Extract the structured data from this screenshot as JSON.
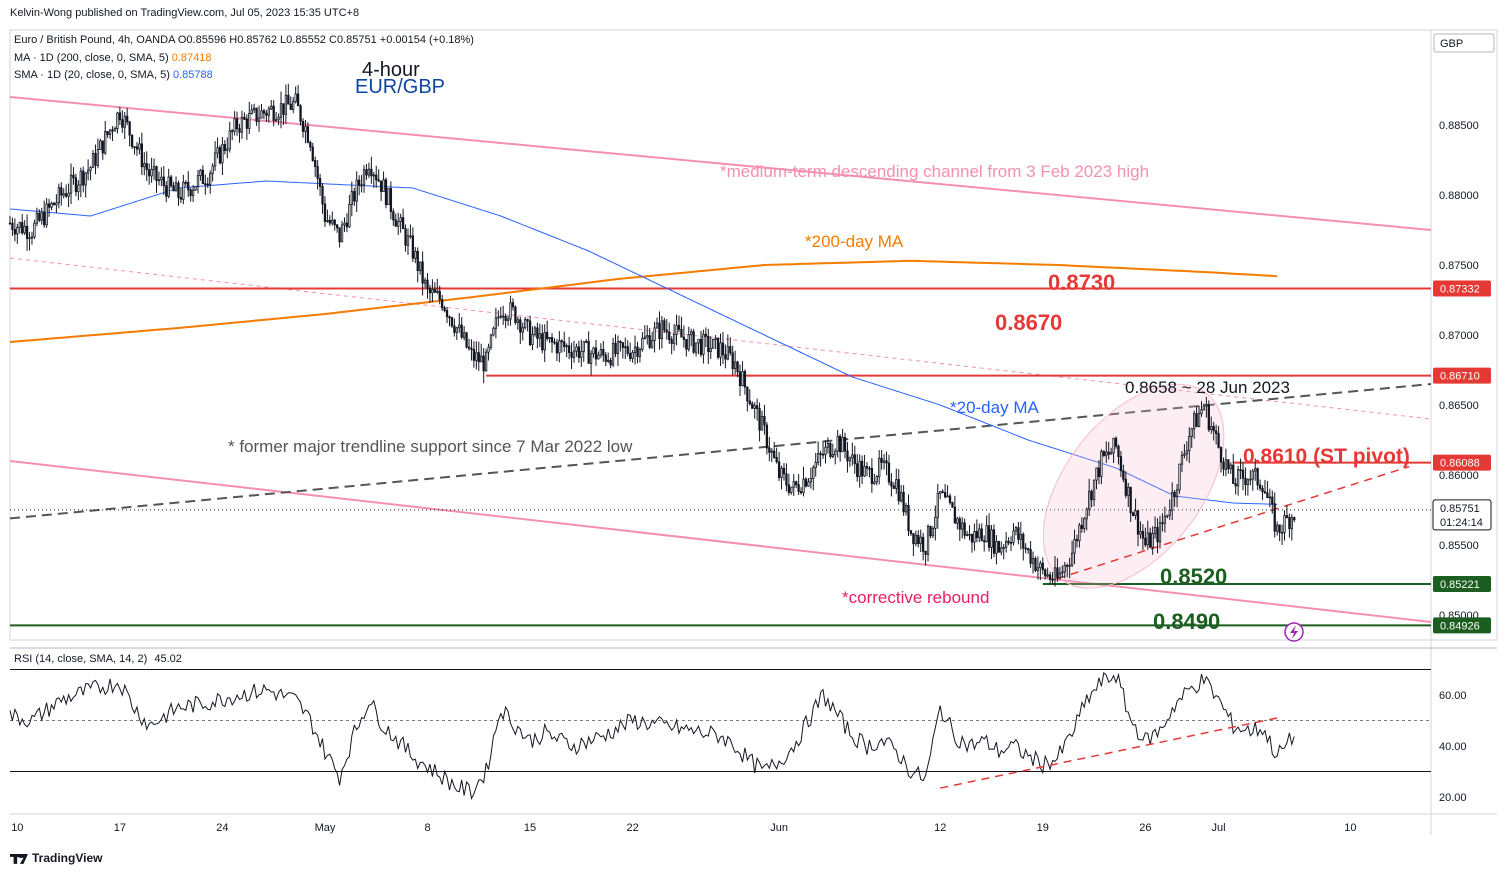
{
  "publisher": "Kelvin-Wong published on TradingView.com, Jul 05, 2023 15:35 UTC+8",
  "brand": "TradingView",
  "legend": {
    "main": "Euro / British Pound, 4h, OANDA",
    "o": "O0.85596",
    "h": "H0.85762",
    "l": "L0.85552",
    "c": "C0.85751",
    "chg": "+0.00154 (+0.18%)",
    "ma": "MA · 1D (200, close, 0, SMA, 5)",
    "ma_val": "0.87418",
    "sma": "SMA · 1D (20, close, 0, SMA, 5)",
    "sma_val": "0.85788",
    "rsi": "RSI (14, close, SMA, 14, 2)",
    "rsi_val": "45.02"
  },
  "colors": {
    "up": "#131722",
    "down": "#131722",
    "ma200": "#f57c00",
    "sma20": "#2962ff",
    "channel": "#f48fb1",
    "resistance": "#e53935",
    "support": "#1b5e20",
    "trend": "#555555",
    "ellipse": "#f8bbd0"
  },
  "chart_data": [
    {
      "type": "candlestick",
      "title": "4-hour EUR/GBP",
      "currency_label": "GBP",
      "y_ticks": [
        0.849,
        0.85,
        0.855,
        0.86,
        0.865,
        0.87,
        0.875,
        0.88,
        0.885
      ],
      "ylim": [
        0.8482,
        0.889
      ],
      "x_ticks": [
        {
          "label": "10",
          "day": -21
        },
        {
          "label": "17",
          "day": -14
        },
        {
          "label": "24",
          "day": -7
        },
        {
          "label": "May",
          "day": 0
        },
        {
          "label": "8",
          "day": 7
        },
        {
          "label": "15",
          "day": 14
        },
        {
          "label": "22",
          "day": 21
        },
        {
          "label": "Jun",
          "day": 31
        },
        {
          "label": "12",
          "day": 42
        },
        {
          "label": "19",
          "day": 49
        },
        {
          "label": "26",
          "day": 56
        },
        {
          "label": "Jul",
          "day": 61
        },
        {
          "label": "10",
          "day": 70
        }
      ],
      "xlim_days": [
        -21.5,
        75.5
      ],
      "price_path_anchors": [
        [
          -21.5,
          0.878
        ],
        [
          -20,
          0.8775
        ],
        [
          -18,
          0.88
        ],
        [
          -16,
          0.882
        ],
        [
          -14,
          0.886
        ],
        [
          -12,
          0.8815
        ],
        [
          -10,
          0.88
        ],
        [
          -8,
          0.8815
        ],
        [
          -6,
          0.885
        ],
        [
          -4,
          0.886
        ],
        [
          -2,
          0.8865
        ],
        [
          -1,
          0.884
        ],
        [
          0,
          0.8785
        ],
        [
          1,
          0.877
        ],
        [
          2,
          0.88
        ],
        [
          3,
          0.8825
        ],
        [
          4,
          0.8805
        ],
        [
          5,
          0.878
        ],
        [
          6,
          0.876
        ],
        [
          7,
          0.873
        ],
        [
          8,
          0.8725
        ],
        [
          9,
          0.8705
        ],
        [
          10,
          0.8685
        ],
        [
          11,
          0.868
        ],
        [
          12,
          0.872
        ],
        [
          13,
          0.8715
        ],
        [
          14,
          0.87
        ],
        [
          15,
          0.8695
        ],
        [
          17,
          0.869
        ],
        [
          19,
          0.8685
        ],
        [
          21,
          0.869
        ],
        [
          23,
          0.8705
        ],
        [
          25,
          0.8695
        ],
        [
          27,
          0.869
        ],
        [
          28,
          0.868
        ],
        [
          29,
          0.8655
        ],
        [
          30,
          0.863
        ],
        [
          31,
          0.86
        ],
        [
          32,
          0.859
        ],
        [
          33,
          0.86
        ],
        [
          34,
          0.8615
        ],
        [
          35,
          0.8625
        ],
        [
          36,
          0.861
        ],
        [
          37,
          0.86
        ],
        [
          38,
          0.8605
        ],
        [
          39,
          0.8595
        ],
        [
          40,
          0.856
        ],
        [
          41,
          0.855
        ],
        [
          42,
          0.8585
        ],
        [
          43,
          0.857
        ],
        [
          44,
          0.8555
        ],
        [
          45,
          0.856
        ],
        [
          46,
          0.8548
        ],
        [
          47,
          0.856
        ],
        [
          48,
          0.8545
        ],
        [
          49,
          0.853
        ],
        [
          50,
          0.8525
        ],
        [
          51,
          0.8545
        ],
        [
          52,
          0.858
        ],
        [
          53,
          0.861
        ],
        [
          54,
          0.862
        ],
        [
          55,
          0.858
        ],
        [
          56,
          0.855
        ],
        [
          57,
          0.856
        ],
        [
          58,
          0.859
        ],
        [
          59,
          0.863
        ],
        [
          60,
          0.865
        ],
        [
          61,
          0.862
        ],
        [
          62,
          0.8595
        ],
        [
          63,
          0.86
        ],
        [
          64,
          0.8595
        ],
        [
          65,
          0.856
        ],
        [
          66.3,
          0.8575
        ]
      ],
      "ma200_path": [
        [
          -21.5,
          0.8695
        ],
        [
          -10,
          0.8705
        ],
        [
          0,
          0.8715
        ],
        [
          10,
          0.8727
        ],
        [
          20,
          0.874
        ],
        [
          30,
          0.875
        ],
        [
          40,
          0.8753
        ],
        [
          50,
          0.875
        ],
        [
          60,
          0.8745
        ],
        [
          65,
          0.8742
        ]
      ],
      "sma20_path": [
        [
          -21.5,
          0.879
        ],
        [
          -16,
          0.8785
        ],
        [
          -10,
          0.8805
        ],
        [
          -4,
          0.881
        ],
        [
          0,
          0.8808
        ],
        [
          6,
          0.8805
        ],
        [
          12,
          0.8785
        ],
        [
          18,
          0.876
        ],
        [
          24,
          0.873
        ],
        [
          30,
          0.87
        ],
        [
          36,
          0.867
        ],
        [
          42,
          0.865
        ],
        [
          48,
          0.8625
        ],
        [
          54,
          0.8605
        ],
        [
          58,
          0.8585
        ],
        [
          62,
          0.858
        ],
        [
          65,
          0.8579
        ]
      ],
      "horizontal_levels": [
        {
          "value": 0.87332,
          "label": "0.87332",
          "color": "#e53935",
          "from_day": -21.5
        },
        {
          "value": 0.8671,
          "label": "0.86710",
          "color": "#e53935",
          "from_day": 11
        },
        {
          "value": 0.86088,
          "label": "0.86088",
          "color": "#e53935",
          "from_day": 62
        },
        {
          "value": 0.85221,
          "label": "0.85221",
          "color": "#1b5e20",
          "from_day": 49
        },
        {
          "value": 0.84926,
          "label": "0.84926",
          "color": "#1b5e20",
          "from_day": -21.5
        }
      ],
      "current_price": {
        "value": 0.85751,
        "label": "0.85751",
        "countdown": "01:24:14"
      },
      "annotations": [
        {
          "text": "4-hour",
          "color": "#131722"
        },
        {
          "text": "EUR/GBP",
          "color": "#0d47a1"
        },
        {
          "text": "*medium-term descending channel from 3 Feb 2023 high",
          "color": "#f48fb1"
        },
        {
          "text": "*200-day MA",
          "color": "#f57c00"
        },
        {
          "text": "0.8730",
          "color": "#e53935"
        },
        {
          "text": "0.8670",
          "color": "#e53935"
        },
        {
          "text": "0.8658 ~ 28 Jun 2023",
          "color": "#131722"
        },
        {
          "text": "*20-day MA",
          "color": "#2962ff"
        },
        {
          "text": "* former major trendline support since 7 Mar 2022 low",
          "color": "#555555"
        },
        {
          "text": "0.8610 (ST pivot)",
          "color": "#e53935"
        },
        {
          "text": "0.8520",
          "color": "#1b5e20"
        },
        {
          "text": "*corrective rebound",
          "color": "#e91e63"
        },
        {
          "text": "0.8490",
          "color": "#1b5e20"
        }
      ]
    },
    {
      "type": "line",
      "title": "RSI (14, close, SMA, 14, 2)",
      "y_ticks": [
        20,
        40,
        60
      ],
      "ylim": [
        12,
        72
      ],
      "bands": [
        30,
        50,
        70
      ],
      "last_value": 45.02,
      "rsi_path_anchors": [
        [
          -21.5,
          52
        ],
        [
          -20,
          50
        ],
        [
          -18,
          58
        ],
        [
          -16,
          62
        ],
        [
          -14,
          65
        ],
        [
          -13,
          55
        ],
        [
          -12,
          48
        ],
        [
          -10,
          55
        ],
        [
          -8,
          57
        ],
        [
          -6,
          60
        ],
        [
          -4,
          62
        ],
        [
          -2,
          58
        ],
        [
          -1,
          50
        ],
        [
          0,
          38
        ],
        [
          1,
          28
        ],
        [
          2,
          45
        ],
        [
          3,
          58
        ],
        [
          4,
          48
        ],
        [
          5,
          42
        ],
        [
          6,
          36
        ],
        [
          7,
          32
        ],
        [
          8,
          28
        ],
        [
          9,
          24
        ],
        [
          10,
          22
        ],
        [
          11,
          30
        ],
        [
          12,
          55
        ],
        [
          13,
          48
        ],
        [
          14,
          42
        ],
        [
          15,
          45
        ],
        [
          17,
          40
        ],
        [
          19,
          44
        ],
        [
          21,
          50
        ],
        [
          23,
          48
        ],
        [
          25,
          46
        ],
        [
          27,
          44
        ],
        [
          28,
          40
        ],
        [
          29,
          34
        ],
        [
          30,
          30
        ],
        [
          31,
          34
        ],
        [
          32,
          40
        ],
        [
          33,
          50
        ],
        [
          34,
          60
        ],
        [
          35,
          52
        ],
        [
          36,
          44
        ],
        [
          37,
          40
        ],
        [
          38,
          42
        ],
        [
          39,
          38
        ],
        [
          40,
          30
        ],
        [
          41,
          27
        ],
        [
          42,
          55
        ],
        [
          43,
          44
        ],
        [
          44,
          40
        ],
        [
          45,
          42
        ],
        [
          46,
          38
        ],
        [
          47,
          40
        ],
        [
          48,
          36
        ],
        [
          49,
          33
        ],
        [
          50,
          35
        ],
        [
          51,
          45
        ],
        [
          52,
          58
        ],
        [
          53,
          65
        ],
        [
          54,
          68
        ],
        [
          55,
          50
        ],
        [
          56,
          42
        ],
        [
          57,
          46
        ],
        [
          58,
          56
        ],
        [
          59,
          62
        ],
        [
          60,
          66
        ],
        [
          61,
          58
        ],
        [
          62,
          48
        ],
        [
          63,
          46
        ],
        [
          64,
          47
        ],
        [
          65,
          36
        ],
        [
          66.3,
          45
        ]
      ]
    }
  ]
}
